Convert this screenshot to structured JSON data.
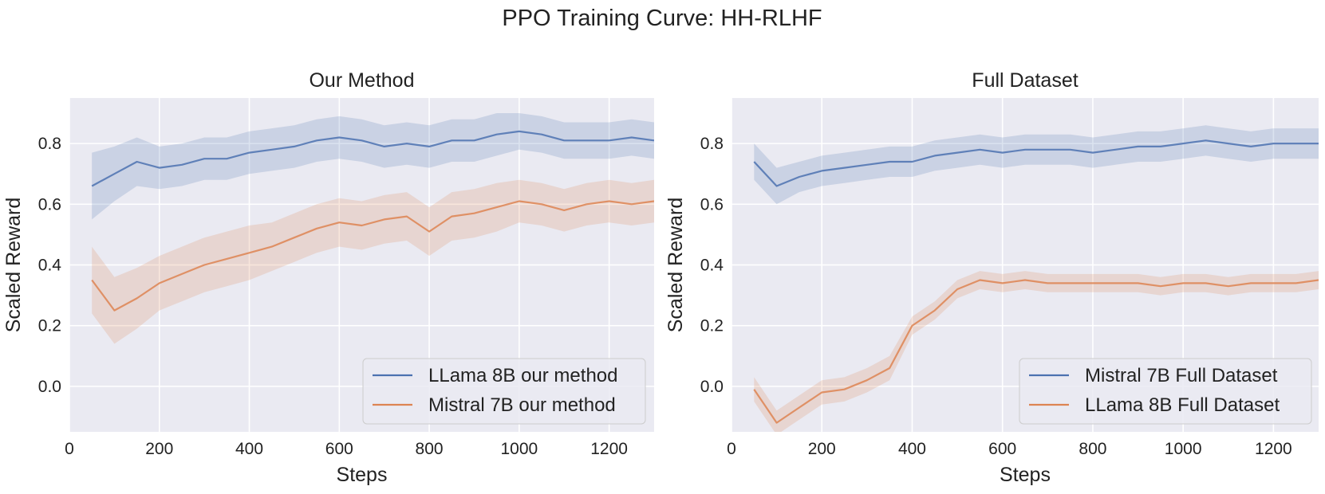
{
  "figure": {
    "title": "PPO Training Curve: HH-RLHF"
  },
  "chart_data": [
    {
      "type": "line",
      "title": "Our Method",
      "xlabel": "Steps",
      "ylabel": "Scaled Reward",
      "xlim": [
        0,
        1300
      ],
      "ylim": [
        -0.15,
        0.95
      ],
      "xticks": [
        0,
        200,
        400,
        600,
        800,
        1000,
        1200
      ],
      "yticks": [
        0.0,
        0.2,
        0.4,
        0.6,
        0.8
      ],
      "ytick_labels": [
        "0.0",
        "0.2",
        "0.4",
        "0.6",
        "0.8"
      ],
      "grid": true,
      "legend_position": "lower-right",
      "x": [
        50,
        100,
        150,
        200,
        250,
        300,
        350,
        400,
        450,
        500,
        550,
        600,
        650,
        700,
        750,
        800,
        850,
        900,
        950,
        1000,
        1050,
        1100,
        1150,
        1200,
        1250,
        1300
      ],
      "series": [
        {
          "name": "LLama 8B our method",
          "color": "#4c72b0",
          "values": [
            0.66,
            0.7,
            0.74,
            0.72,
            0.73,
            0.75,
            0.75,
            0.77,
            0.78,
            0.79,
            0.81,
            0.82,
            0.81,
            0.79,
            0.8,
            0.79,
            0.81,
            0.81,
            0.83,
            0.84,
            0.83,
            0.81,
            0.81,
            0.81,
            0.82,
            0.81
          ],
          "band": [
            0.11,
            0.09,
            0.08,
            0.07,
            0.07,
            0.07,
            0.07,
            0.07,
            0.07,
            0.07,
            0.07,
            0.07,
            0.07,
            0.07,
            0.07,
            0.07,
            0.07,
            0.07,
            0.07,
            0.06,
            0.06,
            0.06,
            0.06,
            0.06,
            0.06,
            0.06
          ]
        },
        {
          "name": "Mistral 7B our method",
          "color": "#dd8452",
          "values": [
            0.35,
            0.25,
            0.29,
            0.34,
            0.37,
            0.4,
            0.42,
            0.44,
            0.46,
            0.49,
            0.52,
            0.54,
            0.53,
            0.55,
            0.56,
            0.51,
            0.56,
            0.57,
            0.59,
            0.61,
            0.6,
            0.58,
            0.6,
            0.61,
            0.6,
            0.61
          ],
          "band": [
            0.11,
            0.11,
            0.1,
            0.09,
            0.09,
            0.09,
            0.09,
            0.09,
            0.08,
            0.08,
            0.08,
            0.08,
            0.08,
            0.08,
            0.08,
            0.08,
            0.08,
            0.08,
            0.08,
            0.07,
            0.07,
            0.07,
            0.07,
            0.07,
            0.07,
            0.07
          ]
        }
      ]
    },
    {
      "type": "line",
      "title": "Full Dataset",
      "xlabel": "Steps",
      "ylabel": "Scaled Reward",
      "xlim": [
        0,
        1300
      ],
      "ylim": [
        -0.15,
        0.95
      ],
      "xticks": [
        0,
        200,
        400,
        600,
        800,
        1000,
        1200
      ],
      "yticks": [
        0.0,
        0.2,
        0.4,
        0.6,
        0.8
      ],
      "ytick_labels": [
        "0.0",
        "0.2",
        "0.4",
        "0.6",
        "0.8"
      ],
      "grid": true,
      "legend_position": "lower-right",
      "x": [
        50,
        100,
        150,
        200,
        250,
        300,
        350,
        400,
        450,
        500,
        550,
        600,
        650,
        700,
        750,
        800,
        850,
        900,
        950,
        1000,
        1050,
        1100,
        1150,
        1200,
        1250,
        1300
      ],
      "series": [
        {
          "name": "Mistral 7B Full Dataset",
          "color": "#4c72b0",
          "values": [
            0.74,
            0.66,
            0.69,
            0.71,
            0.72,
            0.73,
            0.74,
            0.74,
            0.76,
            0.77,
            0.78,
            0.77,
            0.78,
            0.78,
            0.78,
            0.77,
            0.78,
            0.79,
            0.79,
            0.8,
            0.81,
            0.8,
            0.79,
            0.8,
            0.8,
            0.8
          ],
          "band": [
            0.06,
            0.06,
            0.05,
            0.05,
            0.05,
            0.05,
            0.05,
            0.05,
            0.05,
            0.05,
            0.05,
            0.05,
            0.05,
            0.05,
            0.05,
            0.05,
            0.05,
            0.05,
            0.05,
            0.05,
            0.05,
            0.05,
            0.05,
            0.05,
            0.05,
            0.05
          ]
        },
        {
          "name": "LLama 8B Full Dataset",
          "color": "#dd8452",
          "values": [
            -0.01,
            -0.12,
            -0.07,
            -0.02,
            -0.01,
            0.02,
            0.06,
            0.2,
            0.25,
            0.32,
            0.35,
            0.34,
            0.35,
            0.34,
            0.34,
            0.34,
            0.34,
            0.34,
            0.33,
            0.34,
            0.34,
            0.33,
            0.34,
            0.34,
            0.34,
            0.35
          ],
          "band": [
            0.04,
            0.04,
            0.04,
            0.04,
            0.04,
            0.04,
            0.04,
            0.03,
            0.03,
            0.03,
            0.03,
            0.03,
            0.03,
            0.03,
            0.03,
            0.03,
            0.03,
            0.03,
            0.03,
            0.03,
            0.03,
            0.03,
            0.03,
            0.03,
            0.03,
            0.03
          ]
        }
      ]
    }
  ]
}
